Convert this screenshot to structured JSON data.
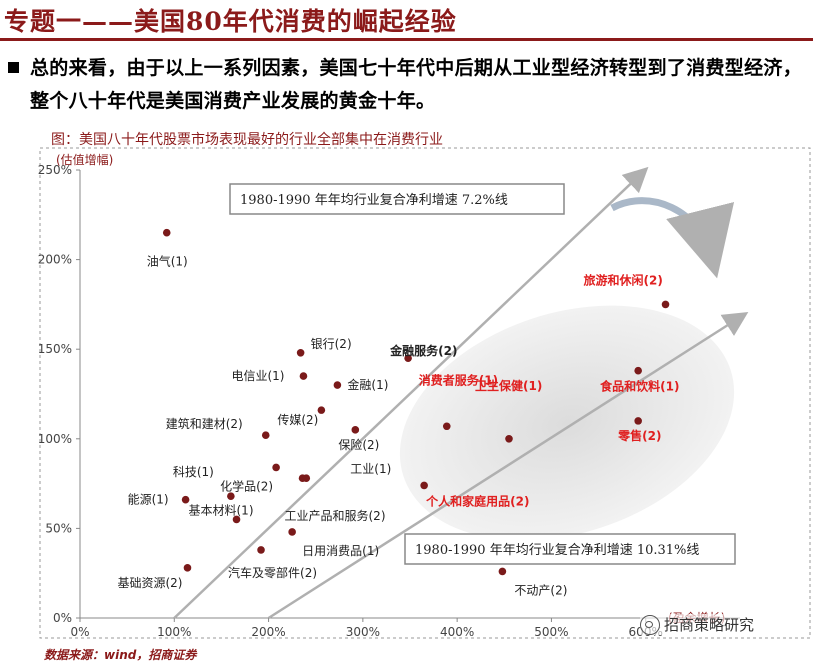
{
  "header": {
    "title": "专题一——美国80年代消费的崛起经验",
    "summary": "总的来看，由于以上一系列因素，美国七十年代中后期从工业型经济转型到了消费型经济，整个八十年代是美国消费产业发展的黄金十年。"
  },
  "figure": {
    "title": "图：美国八十年代股票市场表现最好的行业全部集中在消费行业",
    "source": "数据来源：wind，招商证券",
    "watermark": "招商策略研究"
  },
  "colors": {
    "accent": "#8b1a1a",
    "point": "#7a1a1a",
    "highlight_text": "#e02020",
    "arrow": "#b0b0b0",
    "ellipse": "#ebebeb"
  },
  "chart_data": {
    "type": "scatter",
    "ylabel": "(估值增幅)",
    "xlabel": "(盈余增长)",
    "xlim": [
      0,
      700
    ],
    "ylim": [
      0,
      250
    ],
    "xticks": [
      "0%",
      "100%",
      "200%",
      "300%",
      "400%",
      "500%",
      "600%"
    ],
    "yticks": [
      "0%",
      "50%",
      "100%",
      "150%",
      "200%",
      "250%"
    ],
    "grid": false,
    "points": [
      {
        "label": "油气(1)",
        "x": 92,
        "y": 215,
        "highlight": false
      },
      {
        "label": "银行(2)",
        "x": 234,
        "y": 148,
        "highlight": false
      },
      {
        "label": "电信业(1)",
        "x": 237,
        "y": 135,
        "highlight": false
      },
      {
        "label": "金融服务(2)",
        "x": 348,
        "y": 145,
        "highlight": false,
        "bold": true
      },
      {
        "label": "金融(1)",
        "x": 273,
        "y": 130,
        "highlight": false
      },
      {
        "label": "传媒(2)",
        "x": 256,
        "y": 116,
        "highlight": false
      },
      {
        "label": "保险(2)",
        "x": 292,
        "y": 105,
        "highlight": false
      },
      {
        "label": "建筑和建材(2)",
        "x": 197,
        "y": 102,
        "highlight": false
      },
      {
        "label": "化学品(2)",
        "x": 208,
        "y": 84,
        "highlight": false
      },
      {
        "label": "工业(1)",
        "x": 240,
        "y": 78,
        "highlight": false
      },
      {
        "label": "工业产品和服务(2)",
        "x": 236,
        "y": 78,
        "highlight": false
      },
      {
        "label": "科技(1)",
        "x": 160,
        "y": 68,
        "highlight": false
      },
      {
        "label": "能源(1)",
        "x": 112,
        "y": 66,
        "highlight": false
      },
      {
        "label": "基本材料(1)",
        "x": 166,
        "y": 55,
        "highlight": false
      },
      {
        "label": "日用消费品(1)",
        "x": 225,
        "y": 48,
        "highlight": false
      },
      {
        "label": "汽车及零部件(2)",
        "x": 192,
        "y": 38,
        "highlight": false
      },
      {
        "label": "基础资源(2)",
        "x": 114,
        "y": 28,
        "highlight": false
      },
      {
        "label": "不动产(2)",
        "x": 448,
        "y": 26,
        "highlight": false
      },
      {
        "label": "消费者服务(1)",
        "x": 389,
        "y": 107,
        "highlight": true
      },
      {
        "label": "卫生保健(1)",
        "x": 455,
        "y": 100,
        "highlight": true
      },
      {
        "label": "个人和家庭用品(2)",
        "x": 365,
        "y": 74,
        "highlight": true
      },
      {
        "label": "旅游和休闲(2)",
        "x": 621,
        "y": 175,
        "highlight": true
      },
      {
        "label": "食品和饮料(1)",
        "x": 592,
        "y": 138,
        "highlight": true
      },
      {
        "label": "零售(2)",
        "x": 592,
        "y": 110,
        "highlight": true
      }
    ],
    "annotations": [
      "1980-1990 年年均行业复合净利增速 7.2%线",
      "1980-1990 年年均行业复合净利增速 10.31%线"
    ]
  }
}
